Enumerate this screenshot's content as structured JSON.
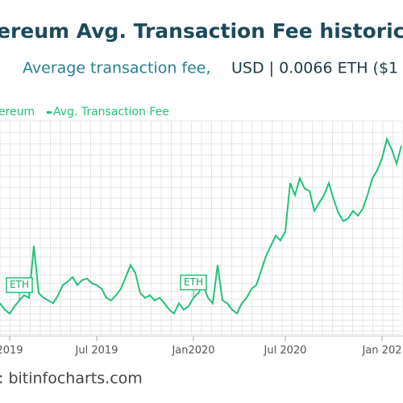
{
  "chart_data": {
    "type": "line",
    "title": "ereum Avg. Transaction Fee historic",
    "subtitle": "Average transaction fee,",
    "subtitle_unit": "USD | 0.0066 ETH ($1",
    "legend": [
      "ereum",
      "Avg. Transaction Fee"
    ],
    "source": ": bitinfocharts.com",
    "log_scale": true,
    "grid": true,
    "ylim": [
      0.05,
      20
    ],
    "xlim": [
      0,
      83
    ],
    "xticks": [
      {
        "value": 2,
        "label": "2019"
      },
      {
        "value": 20,
        "label": "Jul 2019"
      },
      {
        "value": 40,
        "label": "Jan2020"
      },
      {
        "value": 59,
        "label": "Jul 2020"
      },
      {
        "value": 79,
        "label": "Jan 202"
      }
    ],
    "series": [
      {
        "name": "Avg. Transaction Fee",
        "color": "#22c27a",
        "values": [
          0.12,
          0.1,
          0.09,
          0.11,
          0.13,
          0.15,
          0.14,
          0.6,
          0.16,
          0.14,
          0.13,
          0.12,
          0.15,
          0.2,
          0.22,
          0.25,
          0.2,
          0.23,
          0.24,
          0.21,
          0.2,
          0.18,
          0.14,
          0.13,
          0.15,
          0.18,
          0.25,
          0.35,
          0.28,
          0.16,
          0.14,
          0.15,
          0.13,
          0.14,
          0.12,
          0.1,
          0.09,
          0.12,
          0.1,
          0.11,
          0.14,
          0.16,
          0.2,
          0.14,
          0.12,
          0.35,
          0.13,
          0.12,
          0.1,
          0.09,
          0.12,
          0.14,
          0.18,
          0.2,
          0.3,
          0.45,
          0.6,
          0.8,
          0.7,
          0.9,
          3.5,
          2.5,
          4,
          3,
          2.8,
          1.6,
          2,
          2.5,
          3.5,
          2.2,
          1.5,
          1.2,
          1.3,
          1.6,
          1.4,
          1.7,
          2.5,
          4,
          5,
          7,
          12,
          9,
          6,
          10
        ]
      }
    ],
    "annotations": [
      {
        "label": "ETH",
        "at": 4
      },
      {
        "label": "ETH",
        "at": 40
      }
    ]
  }
}
